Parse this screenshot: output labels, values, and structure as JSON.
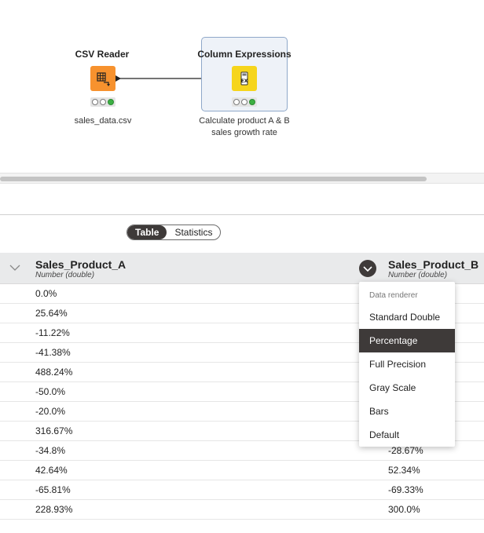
{
  "workflow": {
    "nodes": [
      {
        "title": "CSV Reader",
        "label": "sales_data.csv",
        "icon": "table-reader-icon",
        "color": "#f7922e",
        "status": "executed"
      },
      {
        "title": "Column Expressions",
        "label": "Calculate product A & B sales growth rate",
        "icon": "expression-icon",
        "color": "#f6d51c",
        "status": "executed",
        "selected": true
      }
    ]
  },
  "view_toggle": {
    "options": [
      "Table",
      "Statistics"
    ],
    "selected": "Table"
  },
  "table": {
    "columns": [
      {
        "name": "Sales_Product_A",
        "type": "Number (double)"
      },
      {
        "name": "Sales_Product_B",
        "type": "Number (double)"
      }
    ],
    "rows": [
      {
        "a": "0.0%",
        "b": ""
      },
      {
        "a": "25.64%",
        "b": ""
      },
      {
        "a": "-11.22%",
        "b": ""
      },
      {
        "a": "-41.38%",
        "b": ""
      },
      {
        "a": "488.24%",
        "b": ""
      },
      {
        "a": "-50.0%",
        "b": ""
      },
      {
        "a": "-20.0%",
        "b": ""
      },
      {
        "a": "316.67%",
        "b": ""
      },
      {
        "a": "-34.8%",
        "b": "-28.67%"
      },
      {
        "a": "42.64%",
        "b": "52.34%"
      },
      {
        "a": "-65.81%",
        "b": "-69.33%"
      },
      {
        "a": "228.93%",
        "b": "300.0%"
      }
    ]
  },
  "renderer_menu": {
    "title": "Data renderer",
    "items": [
      "Standard Double",
      "Percentage",
      "Full Precision",
      "Gray Scale",
      "Bars",
      "Default"
    ],
    "selected": "Percentage"
  },
  "colors": {
    "accent_dark": "#3e3a39",
    "csv_node": "#f7922e",
    "expression_node": "#f6d51c",
    "status_green": "#3cb043"
  }
}
